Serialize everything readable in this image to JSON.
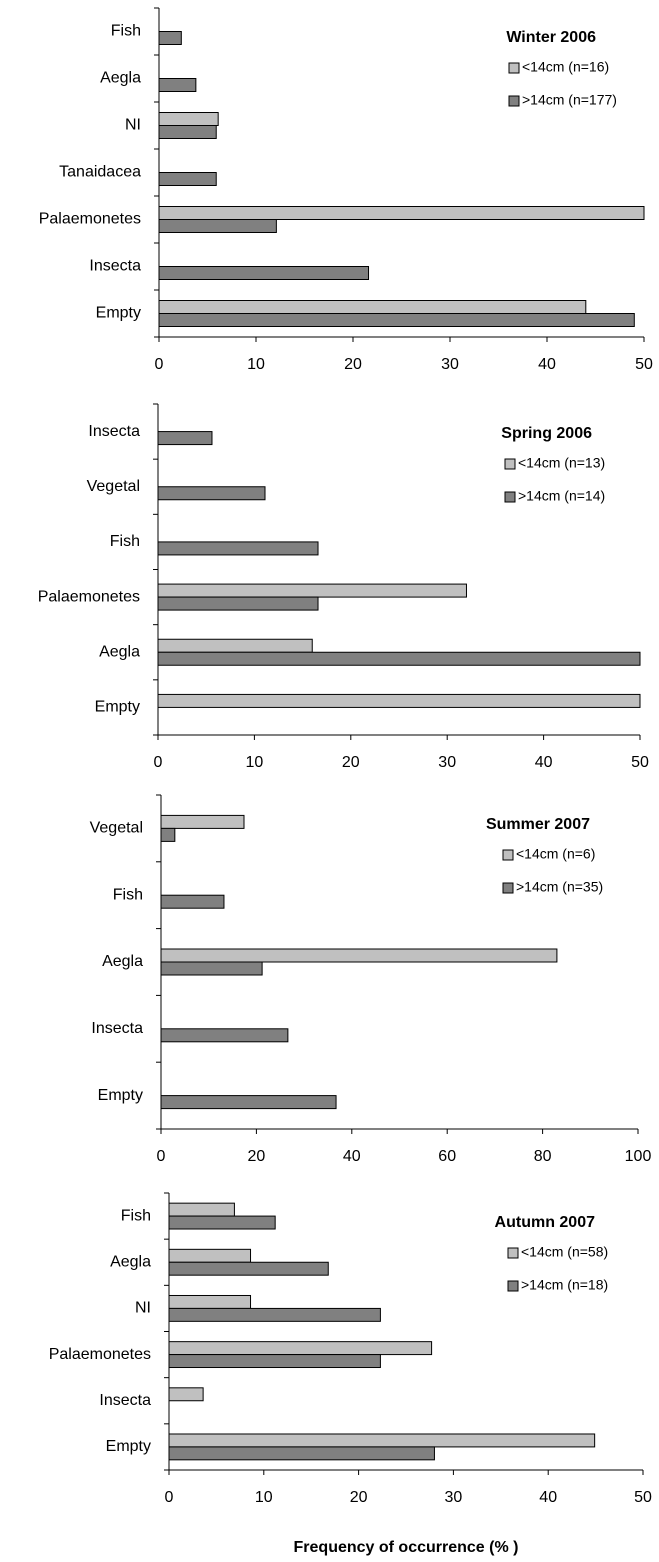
{
  "chart_data": [
    {
      "type": "bar",
      "orientation": "horizontal",
      "title": "Winter 2006",
      "categories": [
        "Fish",
        "Aegla",
        "NI",
        "Tanaidacea",
        "Palaemonetes",
        "Insecta",
        "Empty"
      ],
      "series": [
        {
          "name": "<14cm (n=16)",
          "color": "#c0c0c0",
          "values": [
            null,
            null,
            6.1,
            null,
            50,
            null,
            44
          ]
        },
        {
          "name": ">14cm (n=177)",
          "color": "#808080",
          "values": [
            2.3,
            3.8,
            5.9,
            5.9,
            12.1,
            21.6,
            49
          ]
        }
      ],
      "xlim": [
        0,
        50
      ],
      "xticks": [
        0,
        10,
        20,
        30,
        40,
        50
      ],
      "legend": "upper right"
    },
    {
      "type": "bar",
      "orientation": "horizontal",
      "title": "Spring 2006",
      "categories": [
        "Insecta",
        "Vegetal",
        "Fish",
        "Palaemonetes",
        "Aegla",
        "Empty"
      ],
      "series": [
        {
          "name": "<14cm (n=13)",
          "color": "#c0c0c0",
          "values": [
            null,
            null,
            null,
            32,
            16,
            50
          ]
        },
        {
          "name": ">14cm (n=14)",
          "color": "#808080",
          "values": [
            5.6,
            11.1,
            16.6,
            16.6,
            50,
            null
          ]
        }
      ],
      "xlim": [
        0,
        50
      ],
      "xticks": [
        0,
        10,
        20,
        30,
        40,
        50
      ],
      "legend": "upper right"
    },
    {
      "type": "bar",
      "orientation": "horizontal",
      "title": "Summer 2007",
      "categories": [
        "Vegetal",
        "Fish",
        "Aegla",
        "Insecta",
        "Empty"
      ],
      "series": [
        {
          "name": "<14cm (n=6)",
          "color": "#c0c0c0",
          "values": [
            17.4,
            null,
            83,
            null,
            null
          ]
        },
        {
          "name": ">14cm (n=35)",
          "color": "#808080",
          "values": [
            2.9,
            13.2,
            21.2,
            26.6,
            36.7
          ]
        }
      ],
      "xlim": [
        0,
        100
      ],
      "xticks": [
        0,
        20,
        40,
        60,
        80,
        100
      ],
      "legend": "upper right"
    },
    {
      "type": "bar",
      "orientation": "horizontal",
      "title": "Autumn 2007",
      "categories": [
        "Fish",
        "Aegla",
        "NI",
        "Palaemonetes",
        "Insecta",
        "Empty"
      ],
      "series": [
        {
          "name": "<14cm (n=58)",
          "color": "#c0c0c0",
          "values": [
            6.9,
            8.6,
            8.6,
            27.7,
            3.6,
            44.9
          ]
        },
        {
          "name": ">14cm (n=18)",
          "color": "#808080",
          "values": [
            11.2,
            16.8,
            22.3,
            22.3,
            null,
            28
          ]
        }
      ],
      "xlim": [
        0,
        50
      ],
      "xticks": [
        0,
        10,
        20,
        30,
        40,
        50
      ],
      "legend": "upper right",
      "xlabel": "Frequency of occurrence (% )"
    }
  ]
}
